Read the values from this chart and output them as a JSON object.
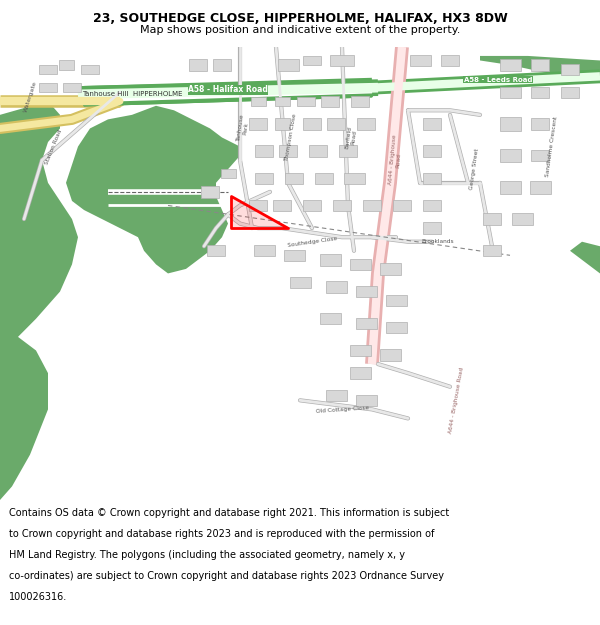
{
  "title_line1": "23, SOUTHEDGE CLOSE, HIPPERHOLME, HALIFAX, HX3 8DW",
  "title_line2": "Map shows position and indicative extent of the property.",
  "footer_lines": [
    "Contains OS data © Crown copyright and database right 2021. This information is subject",
    "to Crown copyright and database rights 2023 and is reproduced with the permission of",
    "HM Land Registry. The polygons (including the associated geometry, namely x, y",
    "co-ordinates) are subject to Crown copyright and database rights 2023 Ordnance Survey",
    "100026316."
  ],
  "map_bg_color": "#ffffff",
  "title_bg_color": "#ffffff",
  "footer_bg_color": "#ffffff",
  "fig_width": 6.0,
  "fig_height": 6.25,
  "title_fontsize": 9.0,
  "subtitle_fontsize": 8.0,
  "footer_fontsize": 7.0,
  "road_a58_color": "#5aaa5a",
  "road_a644_color": "#e8b0b0",
  "road_yellow_color": "#f5e8a0",
  "road_yellow_edge": "#d4c060",
  "green_area_color": "#6aaa6a",
  "building_color": "#d8d8d8",
  "building_edge_color": "#b0b0b0",
  "plot_edge_color": "#ff0000",
  "road_grey": "#c8c8c8",
  "road_edge": "#a0a0a0",
  "text_color": "#555555"
}
